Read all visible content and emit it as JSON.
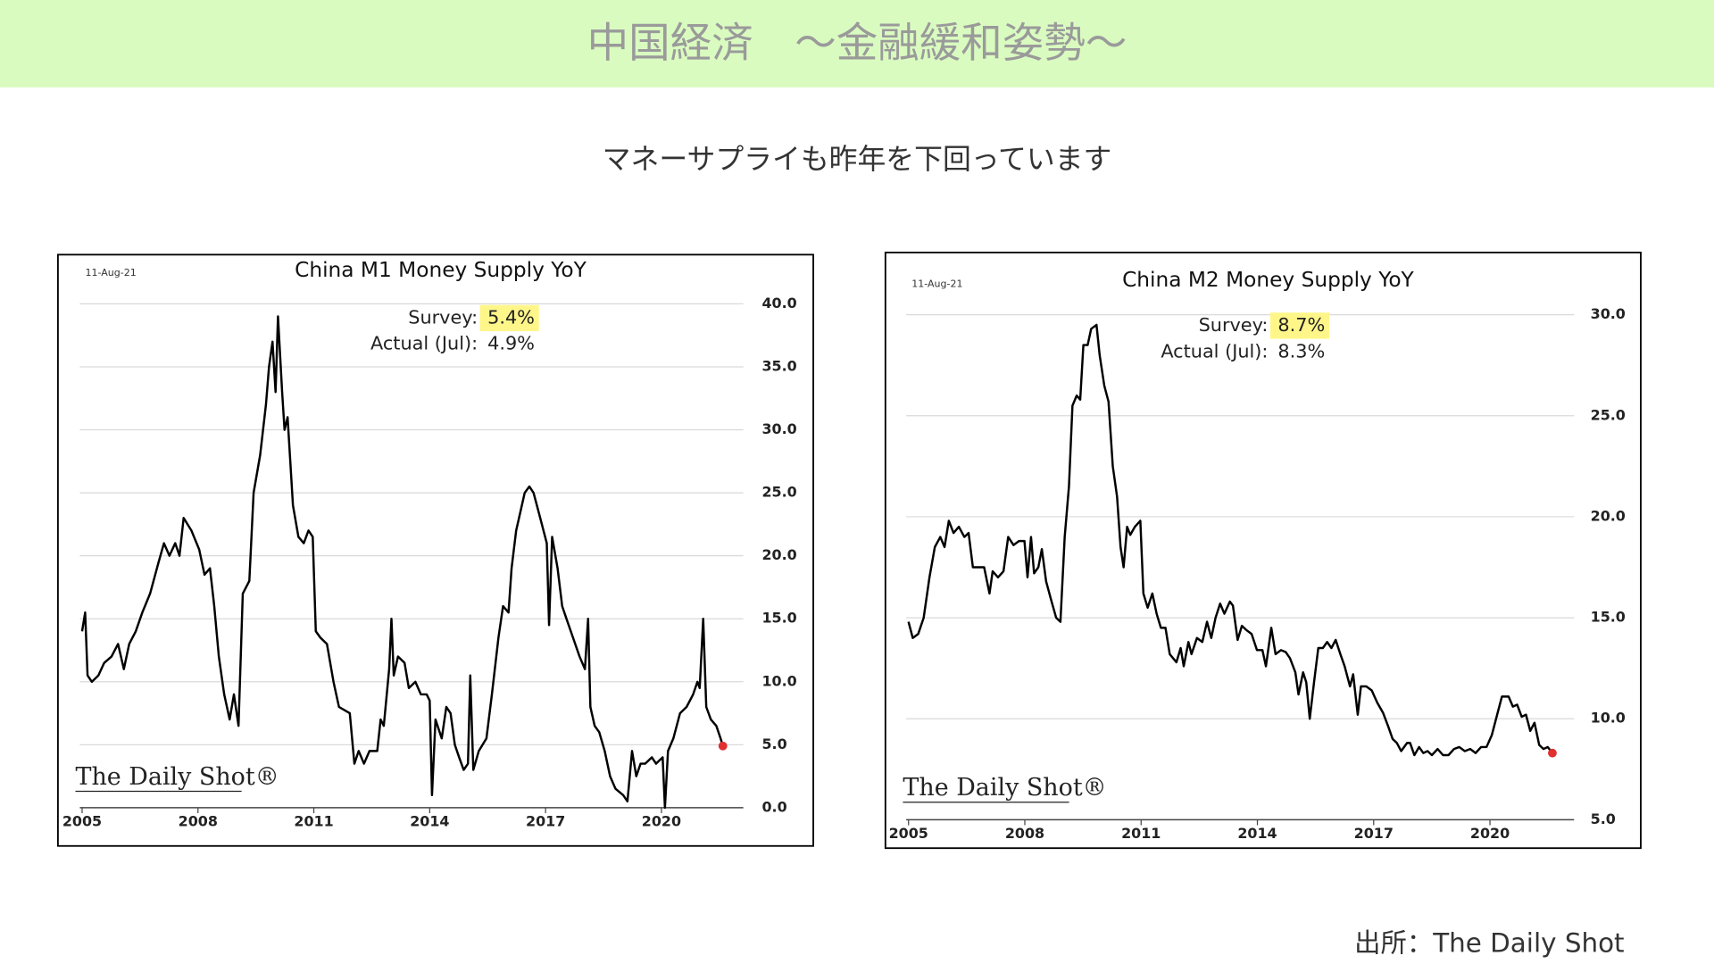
{
  "slide": {
    "title": "中国経済　～金融緩和姿勢～",
    "subtitle": "マネーサプライも昨年を下回っています",
    "source": "出所：The Daily Shot"
  },
  "chart_data": [
    {
      "type": "line",
      "title": "China M1 Money Supply YoY",
      "date": "11-Aug-21",
      "watermark": "The Daily Shot®",
      "annotations": [
        {
          "label": "Survey:",
          "value": "5.4%"
        },
        {
          "label": "Actual (Jul):",
          "value": "4.9%"
        }
      ],
      "xlim": [
        2004.94,
        2022.12
      ],
      "xticks": [
        2005,
        2008,
        2011,
        2014,
        2017,
        2020
      ],
      "ylim": [
        0,
        40
      ],
      "yticks": [
        {
          "value": 0,
          "label": "0.0"
        },
        {
          "value": 5,
          "label": "5.0"
        },
        {
          "value": 10,
          "label": "10.0"
        },
        {
          "value": 15,
          "label": "15.0"
        },
        {
          "value": 20,
          "label": "20.0"
        },
        {
          "value": 25,
          "label": "25.0"
        },
        {
          "value": 30,
          "label": "30.0"
        },
        {
          "value": 35,
          "label": "35.0"
        },
        {
          "value": 40,
          "label": "40.0"
        }
      ],
      "grid": true,
      "color": "#000000",
      "end_marker_color": "#e03030",
      "x": [
        2005.0,
        2005.08,
        2005.14,
        2005.25,
        2005.42,
        2005.57,
        2005.76,
        2005.93,
        2006.08,
        2006.22,
        2006.39,
        2006.56,
        2006.76,
        2006.98,
        2007.12,
        2007.26,
        2007.41,
        2007.52,
        2007.63,
        2007.83,
        2008.03,
        2008.17,
        2008.31,
        2008.42,
        2008.54,
        2008.68,
        2008.82,
        2008.93,
        2009.05,
        2009.16,
        2009.33,
        2009.44,
        2009.61,
        2009.76,
        2009.84,
        2009.93,
        2010.01,
        2010.07,
        2010.18,
        2010.24,
        2010.32,
        2010.46,
        2010.6,
        2010.74,
        2010.86,
        2010.97,
        2011.05,
        2011.17,
        2011.34,
        2011.51,
        2011.65,
        2011.93,
        2012.05,
        2012.16,
        2012.3,
        2012.44,
        2012.64,
        2012.73,
        2012.81,
        2012.95,
        2013.01,
        2013.07,
        2013.18,
        2013.35,
        2013.46,
        2013.63,
        2013.77,
        2013.92,
        2014.0,
        2014.06,
        2014.15,
        2014.31,
        2014.43,
        2014.54,
        2014.65,
        2014.76,
        2014.88,
        2014.99,
        2015.05,
        2015.13,
        2015.27,
        2015.47,
        2015.61,
        2015.78,
        2015.9,
        2016.04,
        2016.12,
        2016.24,
        2016.35,
        2016.46,
        2016.58,
        2016.69,
        2016.86,
        2017.03,
        2017.09,
        2017.17,
        2017.31,
        2017.43,
        2017.54,
        2017.71,
        2017.88,
        2018.02,
        2018.1,
        2018.16,
        2018.27,
        2018.39,
        2018.53,
        2018.67,
        2018.81,
        2019.01,
        2019.12,
        2019.24,
        2019.35,
        2019.46,
        2019.58,
        2019.75,
        2019.86,
        2020.03,
        2020.09,
        2020.17,
        2020.31,
        2020.48,
        2020.65,
        2020.82,
        2020.93,
        2020.99,
        2021.08,
        2021.16,
        2021.28,
        2021.42,
        2021.53,
        2021.59
      ],
      "values": [
        14,
        15.5,
        10.5,
        10,
        10.5,
        11.5,
        12,
        13,
        11,
        13,
        14,
        15.5,
        17,
        19.5,
        21,
        20,
        21,
        20,
        23,
        22,
        20.5,
        18.5,
        19,
        16,
        12,
        9,
        7,
        9,
        6.5,
        17,
        18,
        25,
        28,
        32,
        35,
        37,
        33,
        39,
        33,
        30,
        31,
        24,
        21.5,
        21,
        22,
        21.5,
        14,
        13.5,
        13,
        10,
        8,
        7.5,
        3.5,
        4.5,
        3.5,
        4.5,
        4.5,
        7,
        6.5,
        11,
        15,
        10.5,
        12,
        11.5,
        9.5,
        10,
        9,
        9,
        8.5,
        1,
        7,
        5.5,
        8,
        7.5,
        5,
        4,
        3,
        3.5,
        10.5,
        3,
        4.5,
        5.5,
        9,
        13.5,
        16,
        15.5,
        19,
        22,
        23.5,
        25,
        25.5,
        25,
        23,
        21,
        14.5,
        21.5,
        19,
        16,
        15,
        13.5,
        12,
        11,
        15,
        8,
        6.5,
        6,
        4.5,
        2.5,
        1.5,
        1,
        0.5,
        4.5,
        2.5,
        3.5,
        3.5,
        4,
        3.5,
        4,
        0,
        4.5,
        5.5,
        7.5,
        8,
        9,
        10,
        9.5,
        15,
        8,
        7,
        6.5,
        5.5,
        4.9
      ]
    },
    {
      "type": "line",
      "title": "China M2 Money Supply YoY",
      "date": "11-Aug-21",
      "watermark": "The Daily Shot®",
      "annotations": [
        {
          "label": "Survey:",
          "value": "8.7%"
        },
        {
          "label": "Actual (Jul):",
          "value": "8.3%"
        }
      ],
      "xlim": [
        2004.94,
        2022.17
      ],
      "xticks": [
        2005,
        2008,
        2011,
        2014,
        2017,
        2020
      ],
      "ylim": [
        5,
        30
      ],
      "yticks": [
        {
          "value": 5,
          "label": "5.0"
        },
        {
          "value": 10,
          "label": "10.0"
        },
        {
          "value": 15,
          "label": "15.0"
        },
        {
          "value": 20,
          "label": "20.0"
        },
        {
          "value": 25,
          "label": "25.0"
        },
        {
          "value": 30,
          "label": "30.0"
        }
      ],
      "grid": true,
      "color": "#000000",
      "end_marker_color": "#e03030",
      "x": [
        2005.0,
        2005.11,
        2005.25,
        2005.39,
        2005.54,
        2005.68,
        2005.82,
        2005.93,
        2006.04,
        2006.16,
        2006.3,
        2006.44,
        2006.55,
        2006.66,
        2006.8,
        2006.95,
        2007.09,
        2007.17,
        2007.31,
        2007.45,
        2007.57,
        2007.71,
        2007.85,
        2007.99,
        2008.07,
        2008.16,
        2008.24,
        2008.35,
        2008.44,
        2008.55,
        2008.69,
        2008.81,
        2008.92,
        2009.03,
        2009.14,
        2009.23,
        2009.34,
        2009.43,
        2009.51,
        2009.62,
        2009.71,
        2009.85,
        2009.93,
        2010.05,
        2010.16,
        2010.27,
        2010.38,
        2010.47,
        2010.55,
        2010.64,
        2010.72,
        2010.84,
        2010.98,
        2011.06,
        2011.17,
        2011.29,
        2011.4,
        2011.51,
        2011.63,
        2011.74,
        2011.91,
        2012.02,
        2012.1,
        2012.22,
        2012.3,
        2012.44,
        2012.58,
        2012.7,
        2012.81,
        2012.92,
        2013.04,
        2013.15,
        2013.29,
        2013.37,
        2013.49,
        2013.6,
        2013.71,
        2013.85,
        2013.99,
        2014.13,
        2014.22,
        2014.36,
        2014.47,
        2014.61,
        2014.73,
        2014.84,
        2014.98,
        2015.06,
        2015.18,
        2015.26,
        2015.35,
        2015.46,
        2015.57,
        2015.69,
        2015.8,
        2015.91,
        2016.02,
        2016.14,
        2016.25,
        2016.39,
        2016.47,
        2016.59,
        2016.67,
        2016.81,
        2016.95,
        2017.09,
        2017.24,
        2017.38,
        2017.49,
        2017.6,
        2017.71,
        2017.86,
        2017.94,
        2018.05,
        2018.17,
        2018.28,
        2018.39,
        2018.5,
        2018.65,
        2018.79,
        2018.93,
        2019.07,
        2019.21,
        2019.35,
        2019.49,
        2019.63,
        2019.77,
        2019.91,
        2020.05,
        2020.2,
        2020.31,
        2020.48,
        2020.59,
        2020.7,
        2020.82,
        2020.93,
        2021.04,
        2021.15,
        2021.27,
        2021.38,
        2021.49,
        2021.61
      ],
      "values": [
        14.8,
        14,
        14.2,
        15,
        17,
        18.5,
        19,
        18.5,
        19.8,
        19.2,
        19.5,
        19,
        19.2,
        17.5,
        17.5,
        17.5,
        16.2,
        17.3,
        17,
        17.3,
        19,
        18.6,
        18.8,
        18.8,
        17,
        19,
        17.2,
        17.5,
        18.4,
        16.8,
        15.8,
        15,
        14.8,
        19,
        21.5,
        25.5,
        26,
        25.8,
        28.5,
        28.5,
        29.3,
        29.5,
        28,
        26.5,
        25.7,
        22.5,
        21,
        18.5,
        17.5,
        19.5,
        19.1,
        19.5,
        19.8,
        16.2,
        15.5,
        16.2,
        15.2,
        14.5,
        14.5,
        13.2,
        12.8,
        13.5,
        12.6,
        13.8,
        13.2,
        14,
        13.8,
        14.8,
        14,
        15,
        15.7,
        15.2,
        15.8,
        15.6,
        13.9,
        14.6,
        14.4,
        14.2,
        13.4,
        13.4,
        12.6,
        14.5,
        13.2,
        13.4,
        13.3,
        13,
        12.3,
        11.2,
        12.3,
        11.8,
        10,
        11.8,
        13.5,
        13.5,
        13.8,
        13.5,
        13.9,
        13.2,
        12.6,
        11.6,
        12.2,
        10.2,
        11.6,
        11.6,
        11.4,
        10.8,
        10.3,
        9.6,
        9,
        8.8,
        8.4,
        8.8,
        8.8,
        8.2,
        8.6,
        8.3,
        8.4,
        8.2,
        8.5,
        8.2,
        8.2,
        8.5,
        8.6,
        8.4,
        8.5,
        8.3,
        8.6,
        8.6,
        9.2,
        10.3,
        11.1,
        11.1,
        10.6,
        10.7,
        10.1,
        10.2,
        9.4,
        9.8,
        8.7,
        8.5,
        8.6,
        8.3
      ]
    }
  ]
}
